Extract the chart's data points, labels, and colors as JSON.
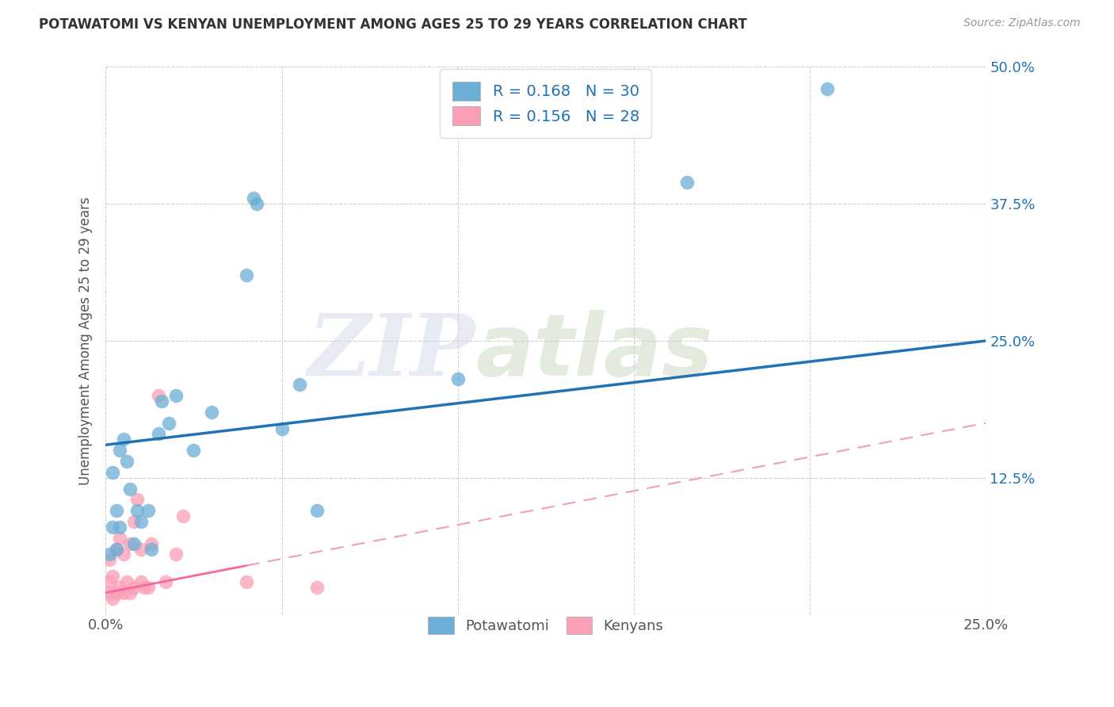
{
  "title": "POTAWATOMI VS KENYAN UNEMPLOYMENT AMONG AGES 25 TO 29 YEARS CORRELATION CHART",
  "source": "Source: ZipAtlas.com",
  "ylabel": "Unemployment Among Ages 25 to 29 years",
  "xlim": [
    0.0,
    0.25
  ],
  "ylim": [
    0.0,
    0.5
  ],
  "xticks": [
    0.0,
    0.05,
    0.1,
    0.15,
    0.2,
    0.25
  ],
  "yticks": [
    0.0,
    0.125,
    0.25,
    0.375,
    0.5
  ],
  "xticklabels": [
    "0.0%",
    "",
    "",
    "",
    "",
    "25.0%"
  ],
  "yticklabels": [
    "",
    "12.5%",
    "25.0%",
    "37.5%",
    "50.0%"
  ],
  "legend_label1": "R = 0.168   N = 30",
  "legend_label2": "R = 0.156   N = 28",
  "legend_label1_short": "Potawatomi",
  "legend_label2_short": "Kenyans",
  "potawatomi_color": "#6baed6",
  "kenyan_color": "#fa9fb5",
  "potawatomi_line_color": "#2171b5",
  "kenyan_line_color": "#f768a1",
  "kenyan_line_dashed_color": "#f0a0b8",
  "background_color": "#ffffff",
  "watermark_zip": "ZIP",
  "watermark_atlas": "atlas",
  "pot_line_x0": 0.0,
  "pot_line_y0": 0.155,
  "pot_line_x1": 0.25,
  "pot_line_y1": 0.25,
  "ken_line_x0": 0.0,
  "ken_line_y0": 0.02,
  "ken_line_x1": 0.25,
  "ken_line_y1": 0.175,
  "potawatomi_x": [
    0.001,
    0.002,
    0.002,
    0.003,
    0.003,
    0.004,
    0.004,
    0.005,
    0.006,
    0.007,
    0.008,
    0.009,
    0.01,
    0.012,
    0.013,
    0.015,
    0.016,
    0.018,
    0.02,
    0.04,
    0.042,
    0.043,
    0.05,
    0.055,
    0.1,
    0.165,
    0.205,
    0.025,
    0.03,
    0.06
  ],
  "potawatomi_y": [
    0.055,
    0.13,
    0.08,
    0.06,
    0.095,
    0.08,
    0.15,
    0.16,
    0.14,
    0.115,
    0.065,
    0.095,
    0.085,
    0.095,
    0.06,
    0.165,
    0.195,
    0.175,
    0.2,
    0.31,
    0.38,
    0.375,
    0.17,
    0.21,
    0.215,
    0.395,
    0.48,
    0.15,
    0.185,
    0.095
  ],
  "kenyan_x": [
    0.001,
    0.001,
    0.001,
    0.002,
    0.002,
    0.003,
    0.003,
    0.004,
    0.004,
    0.005,
    0.005,
    0.006,
    0.007,
    0.007,
    0.008,
    0.008,
    0.009,
    0.01,
    0.01,
    0.011,
    0.012,
    0.013,
    0.015,
    0.017,
    0.02,
    0.022,
    0.04,
    0.06
  ],
  "kenyan_y": [
    0.02,
    0.03,
    0.05,
    0.015,
    0.035,
    0.02,
    0.06,
    0.025,
    0.07,
    0.02,
    0.055,
    0.03,
    0.065,
    0.02,
    0.085,
    0.025,
    0.105,
    0.03,
    0.06,
    0.025,
    0.025,
    0.065,
    0.2,
    0.03,
    0.055,
    0.09,
    0.03,
    0.025
  ]
}
